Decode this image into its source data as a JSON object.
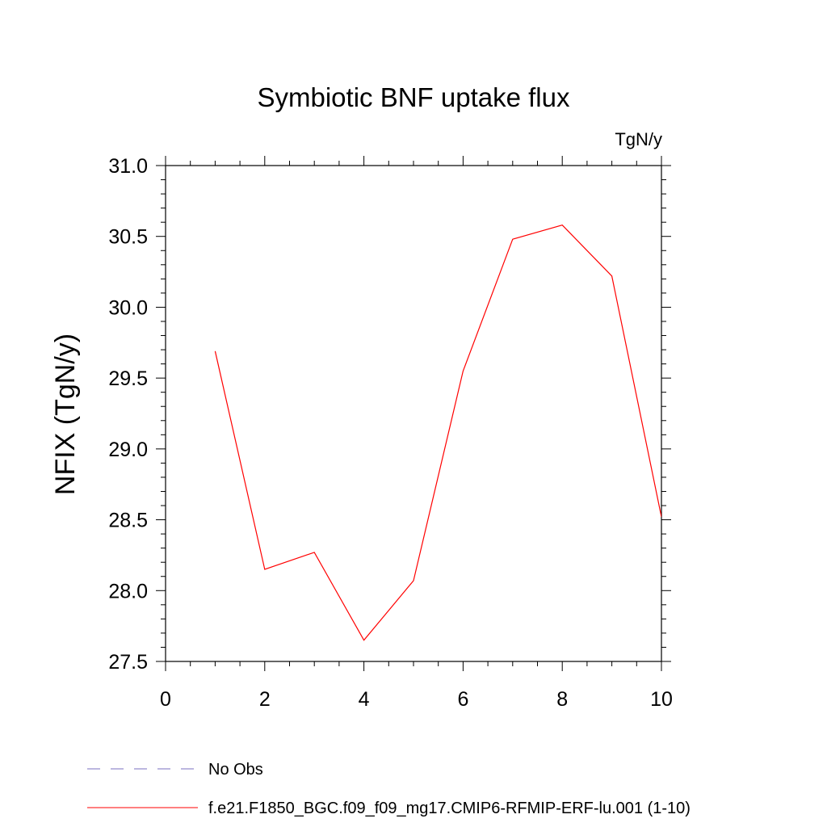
{
  "chart_data": {
    "type": "line",
    "title": "Symbiotic BNF uptake flux",
    "units_label": "TgN/y",
    "ylabel": "NFIX  (TgN/y)",
    "xlabel": "",
    "xlim": [
      0,
      10
    ],
    "ylim": [
      27.5,
      31.0
    ],
    "x_ticks": [
      "0",
      "2",
      "4",
      "6",
      "8",
      "10"
    ],
    "y_ticks": [
      "27.5",
      "28.0",
      "28.5",
      "29.0",
      "29.5",
      "30.0",
      "30.5",
      "31.0"
    ],
    "grid": false,
    "legend_position": "bottom-left",
    "series": [
      {
        "name": "f.e21.F1850_BGC.f09_f09_mg17.CMIP6-RFMIP-ERF-lu.001 (1-10)",
        "color": "#ff0000",
        "style": "solid",
        "x": [
          1,
          2,
          3,
          4,
          5,
          6,
          7,
          8,
          9,
          10
        ],
        "y": [
          29.69,
          28.15,
          28.27,
          27.65,
          28.07,
          29.55,
          30.48,
          30.58,
          30.22,
          28.52
        ]
      }
    ],
    "legend": [
      {
        "label": "No Obs",
        "color": "#7a6fc0",
        "style": "dashed"
      },
      {
        "label": "f.e21.F1850_BGC.f09_f09_mg17.CMIP6-RFMIP-ERF-lu.001 (1-10)",
        "color": "#ff0000",
        "style": "solid"
      }
    ]
  }
}
